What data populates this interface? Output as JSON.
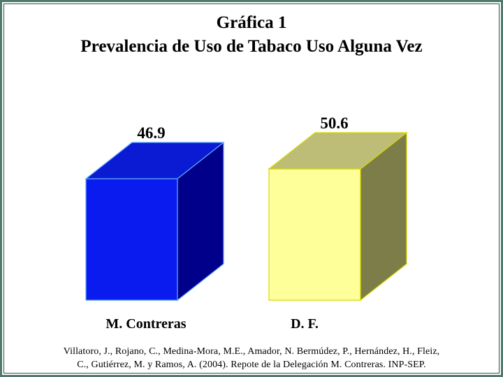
{
  "chart_data": {
    "type": "bar",
    "title": "Gráfica 1",
    "subtitle": "Prevalencia de Uso de Tabaco Uso Alguna Vez",
    "categories": [
      "M. Contreras",
      "D. F."
    ],
    "values": [
      46.9,
      50.6
    ],
    "value_labels": [
      "46.9",
      "50.6"
    ],
    "xlabel": "",
    "ylabel": "",
    "colors": [
      {
        "front": "#0a1bf0",
        "top": "#0a1bd3",
        "side": "#00008a",
        "edge": "#5fa8ff"
      },
      {
        "front": "#ffff99",
        "top": "#bdbd78",
        "side": "#7d7d49",
        "edge": "#d8d800"
      }
    ],
    "grid": false,
    "legend": "none"
  },
  "source_text": {
    "line1": "Villatoro, J., Rojano, C., Medina-Mora, M.E., Amador, N. Bermúdez, P., Hernández, H., Fleiz,",
    "line2": "C., Gutiérrez, M. y Ramos, A. (2004). Repote de la Delegación M. Contreras. INP-SEP."
  },
  "frame_color": "#4f7a6c"
}
